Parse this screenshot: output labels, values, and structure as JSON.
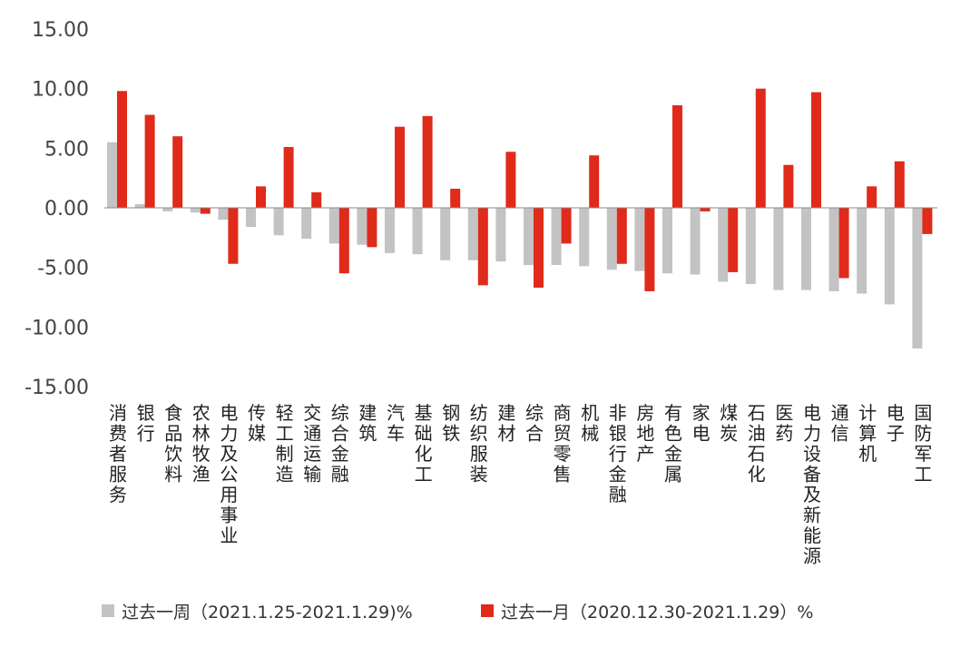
{
  "chart_data": {
    "type": "bar",
    "title": "",
    "xlabel": "",
    "ylabel": "",
    "ylim": [
      -15,
      15
    ],
    "yticks": [
      "15.00",
      "10.00",
      "5.00",
      "0.00",
      "-5.00",
      "-10.00",
      "-15.00"
    ],
    "legend_position": "bottom",
    "grid": false,
    "categories": [
      "消费者服务",
      "银行",
      "食品饮料",
      "农林牧渔",
      "电力及公用事业",
      "传媒",
      "轻工制造",
      "交通运输",
      "综合金融",
      "建筑",
      "汽车",
      "基础化工",
      "钢铁",
      "纺织服装",
      "建材",
      "综合",
      "商贸零售",
      "机械",
      "非银行金融",
      "房地产",
      "有色金属",
      "家电",
      "煤炭",
      "石油石化",
      "医药",
      "电力设备及新能源",
      "通信",
      "计算机",
      "电子",
      "国防军工"
    ],
    "series": [
      {
        "name": "过去一周（2021.1.25-2021.1.29)%",
        "color": "#c3c3c3",
        "values": [
          5.5,
          0.3,
          -0.3,
          -0.4,
          -1.0,
          -1.6,
          -2.3,
          -2.6,
          -3.0,
          -3.1,
          -3.8,
          -3.9,
          -4.4,
          -4.4,
          -4.5,
          -4.8,
          -4.8,
          -4.9,
          -5.2,
          -5.3,
          -5.5,
          -5.6,
          -6.2,
          -6.4,
          -6.9,
          -6.9,
          -7.0,
          -7.2,
          -8.1,
          -11.8
        ]
      },
      {
        "name": "过去一月（2020.12.30-2021.1.29）%",
        "color": "#e02a1a",
        "values": [
          9.8,
          7.8,
          6.0,
          -0.5,
          -4.7,
          1.8,
          5.1,
          1.3,
          -5.5,
          -3.3,
          6.8,
          7.7,
          1.6,
          -6.5,
          4.7,
          -6.7,
          -3.0,
          4.4,
          -4.7,
          -7.0,
          8.6,
          -0.3,
          -5.4,
          10.0,
          3.6,
          9.7,
          -5.9,
          1.8,
          3.9,
          -2.2
        ]
      }
    ]
  }
}
